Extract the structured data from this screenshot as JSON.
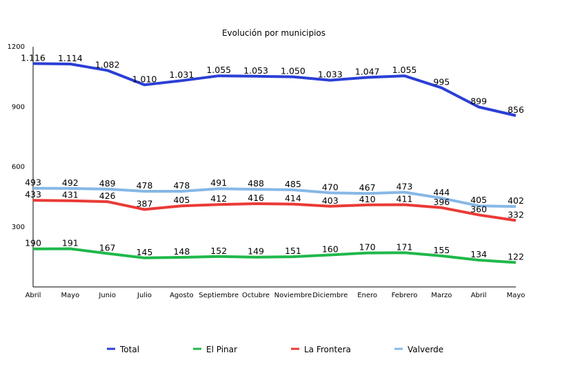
{
  "chart_data": {
    "type": "line",
    "title": "Evolución por municipios",
    "xlabel": "",
    "ylabel": "",
    "categories": [
      "Abril",
      "Mayo",
      "Junio",
      "Julio",
      "Agosto",
      "Septiembre",
      "Octubre",
      "Noviembre",
      "Diciembre",
      "Enero",
      "Febrero",
      "Marzo",
      "Abril",
      "Mayo"
    ],
    "ylim": [
      0,
      1200
    ],
    "yticks": [
      300,
      600,
      900,
      1200
    ],
    "legend_position": "bottom",
    "grid": false,
    "series": [
      {
        "name": "Total",
        "color": "#2a3fd6",
        "values": [
          1116,
          1114,
          1082,
          1010,
          1031,
          1055,
          1053,
          1050,
          1033,
          1047,
          1055,
          995,
          899,
          856
        ],
        "labels": [
          "1.116",
          "1.114",
          "1.082",
          "1.010",
          "1.031",
          "1.055",
          "1.053",
          "1.050",
          "1.033",
          "1.047",
          "1.055",
          "995",
          "899",
          "856"
        ]
      },
      {
        "name": "El Pinar",
        "color": "#1fb84a",
        "values": [
          190,
          191,
          167,
          145,
          148,
          152,
          149,
          151,
          160,
          170,
          171,
          155,
          134,
          122
        ],
        "labels": [
          "190",
          "191",
          "167",
          "145",
          "148",
          "152",
          "149",
          "151",
          "160",
          "170",
          "171",
          "155",
          "134",
          "122"
        ]
      },
      {
        "name": "La Frontera",
        "color": "#ea3a35",
        "values": [
          433,
          431,
          426,
          387,
          405,
          412,
          416,
          414,
          403,
          410,
          411,
          396,
          360,
          332
        ],
        "labels": [
          "433",
          "431",
          "426",
          "387",
          "405",
          "412",
          "416",
          "414",
          "403",
          "410",
          "411",
          "396",
          "360",
          "332"
        ]
      },
      {
        "name": "Valverde",
        "color": "#86b8e6",
        "values": [
          493,
          492,
          489,
          478,
          478,
          491,
          488,
          485,
          470,
          467,
          473,
          444,
          405,
          402
        ],
        "labels": [
          "493",
          "492",
          "489",
          "478",
          "478",
          "491",
          "488",
          "485",
          "470",
          "467",
          "473",
          "444",
          "405",
          "402"
        ]
      }
    ]
  }
}
